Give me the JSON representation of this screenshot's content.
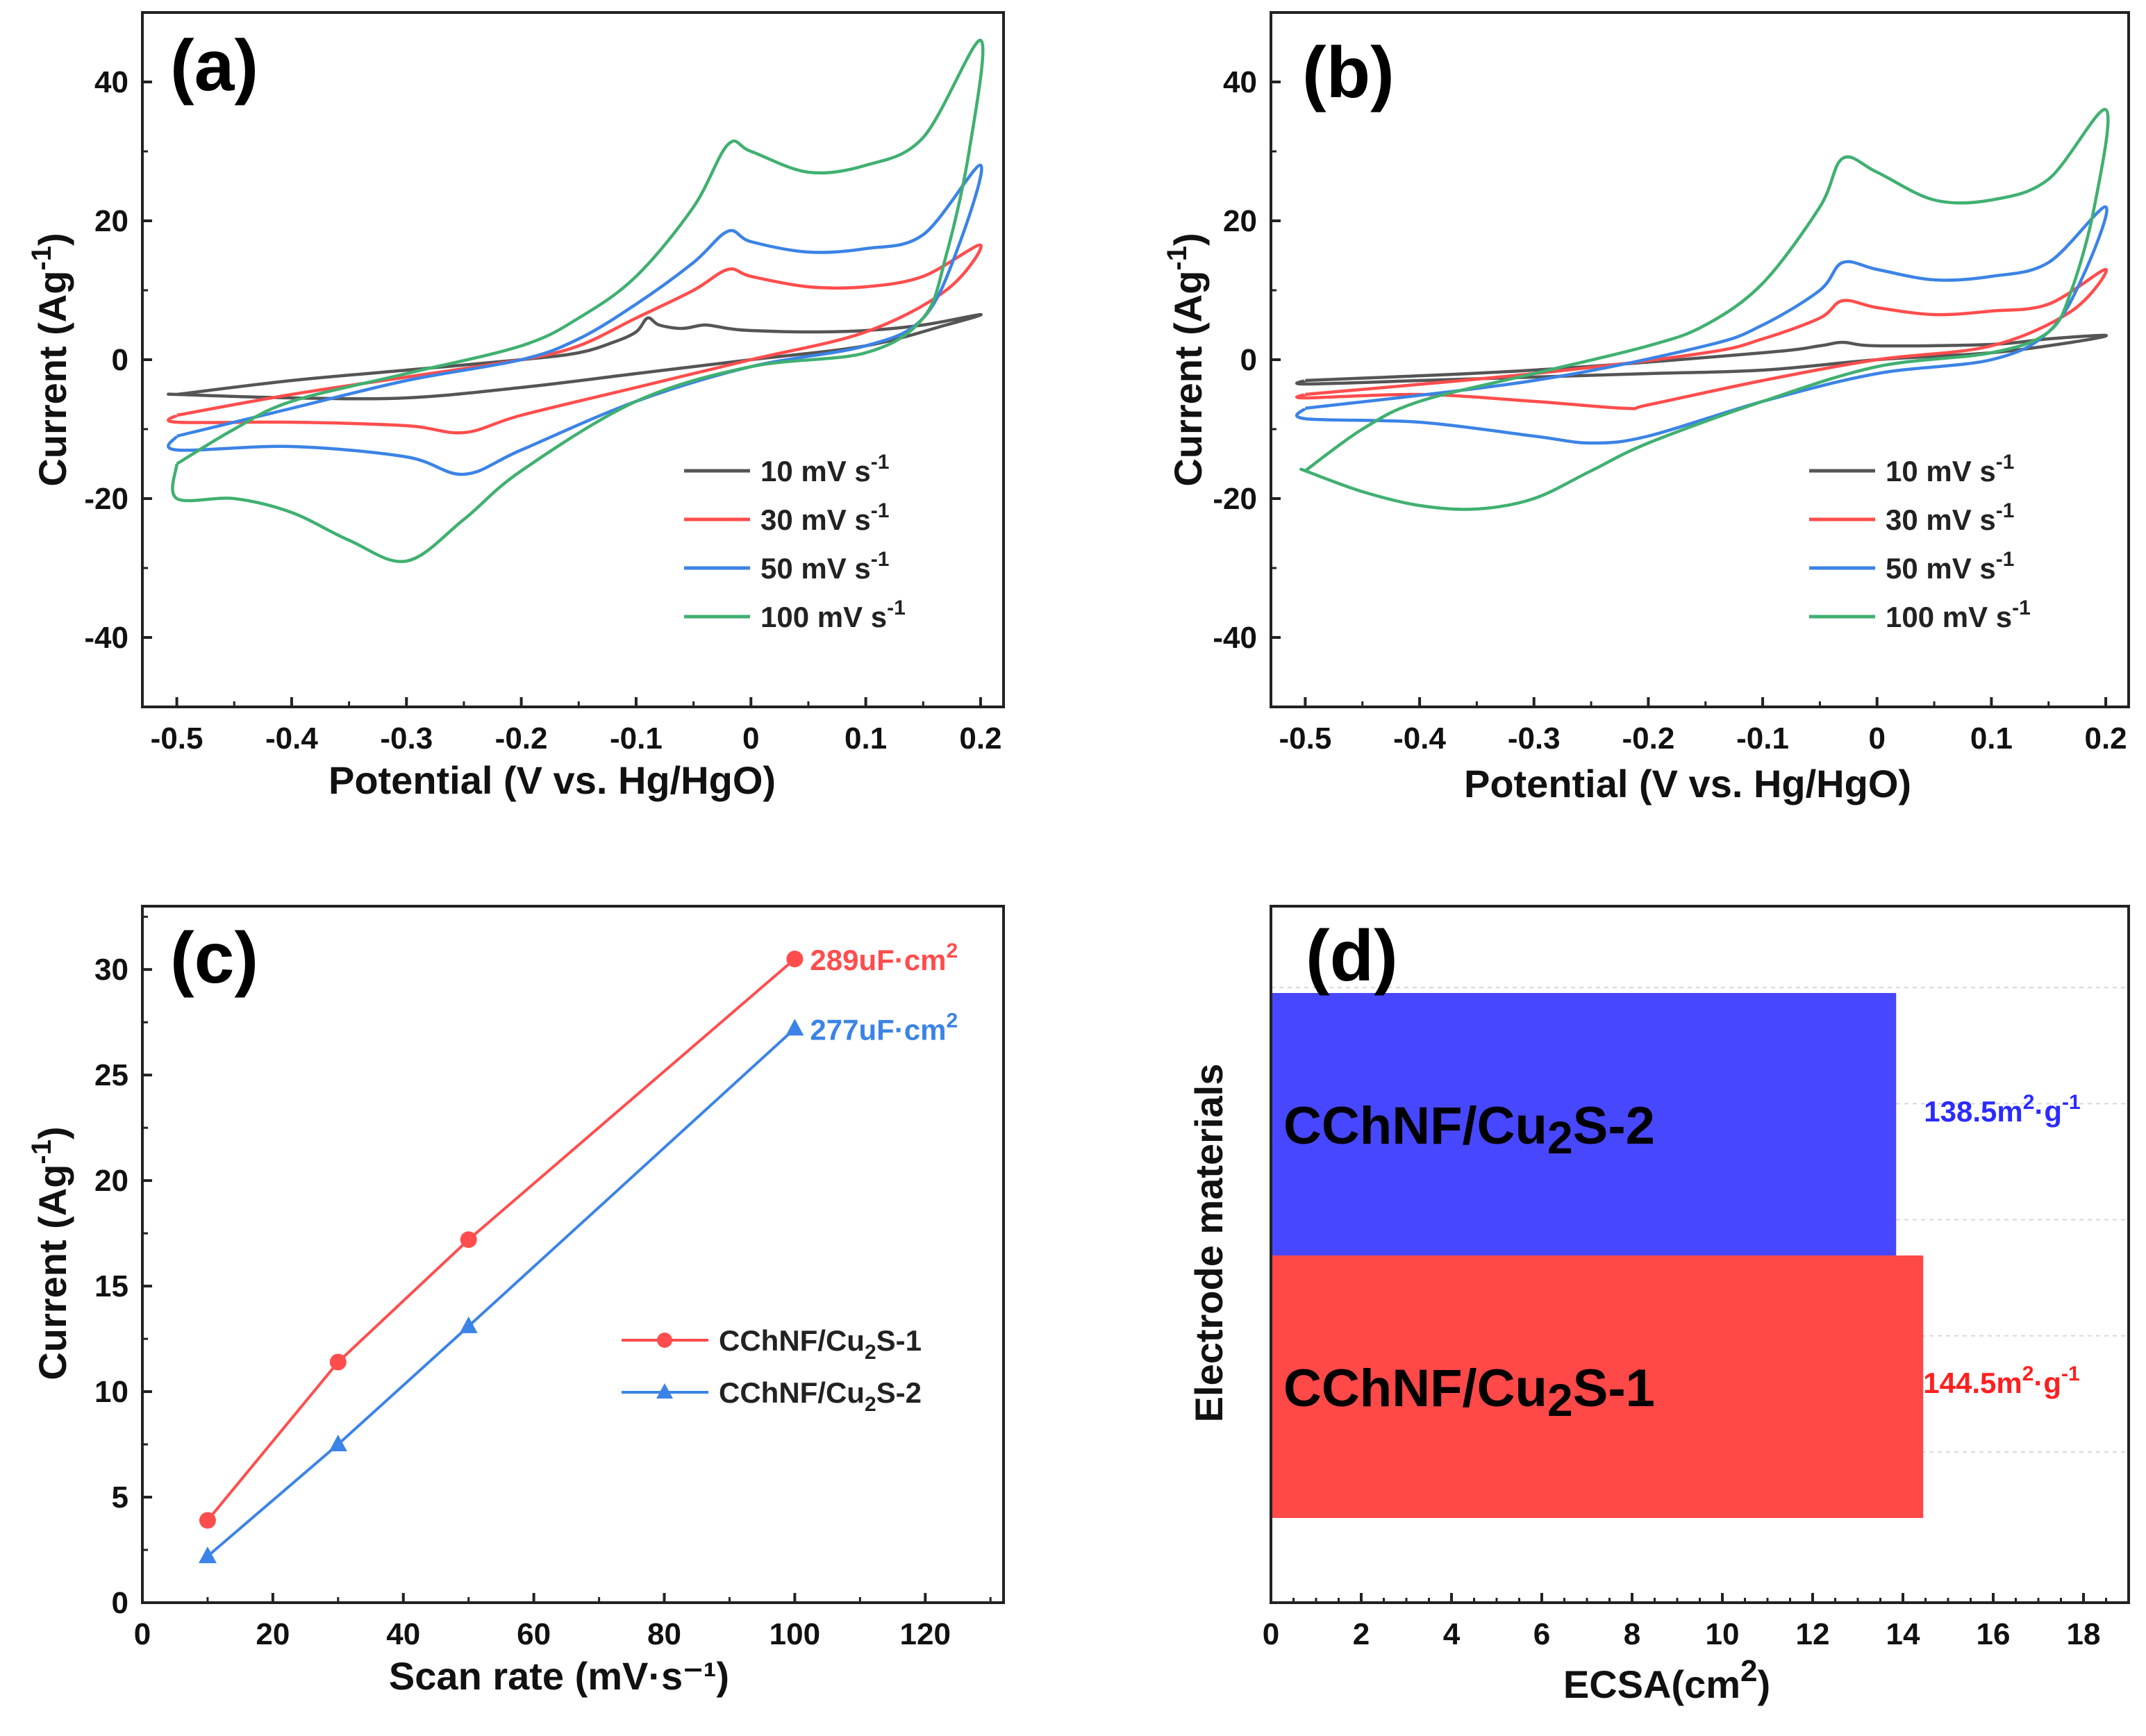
{
  "chart_data": [
    {
      "panel": "(a)",
      "type": "line",
      "xlabel": "Potential (V vs. Hg/HgO)",
      "ylabel": "Current (Ag",
      "ylabel_sup": "-1",
      "ylabel_close": ")",
      "xlim": [
        -0.53,
        0.22
      ],
      "ylim": [
        -50,
        50
      ],
      "xticks": [
        -0.5,
        -0.4,
        -0.3,
        -0.2,
        -0.1,
        0,
        0.1,
        0.2
      ],
      "xtick_labels": [
        "-0.5",
        "-0.4",
        "-0.3",
        "-0.2",
        "-0.1",
        "0",
        "0.1",
        "0.2"
      ],
      "yticks": [
        -40,
        -20,
        0,
        20,
        40
      ],
      "ytick_labels": [
        "-40",
        "-20",
        "0",
        "20",
        "40"
      ],
      "legend_position": "bottom-right",
      "series": [
        {
          "name": "10 mV s",
          "sup": "-1",
          "color": "#555555",
          "x": [
            -0.5,
            -0.4,
            -0.3,
            -0.2,
            -0.15,
            -0.12,
            -0.1,
            -0.09,
            -0.08,
            -0.06,
            -0.04,
            -0.02,
            0,
            0.05,
            0.1,
            0.15,
            0.2,
            0.17,
            0.1,
            0,
            -0.1,
            -0.2,
            -0.3,
            -0.4,
            -0.5
          ],
          "y": [
            -5,
            -3,
            -1.5,
            0,
            1,
            2.5,
            4,
            6,
            5,
            4.5,
            5,
            4.5,
            4.2,
            4,
            4.2,
            5,
            6.5,
            5,
            2,
            0,
            -2,
            -4,
            -5.5,
            -5.5,
            -5
          ]
        },
        {
          "name": "30 mV s",
          "sup": "-1",
          "color": "#ff4d4d",
          "x": [
            -0.5,
            -0.4,
            -0.3,
            -0.2,
            -0.15,
            -0.1,
            -0.05,
            -0.02,
            0,
            0.05,
            0.1,
            0.15,
            0.2,
            0.17,
            0.1,
            0,
            -0.1,
            -0.2,
            -0.25,
            -0.3,
            -0.4,
            -0.5
          ],
          "y": [
            -8,
            -5,
            -2.5,
            0,
            2,
            6,
            10,
            13,
            12,
            10.5,
            10.5,
            12,
            16.5,
            10,
            4,
            0,
            -4,
            -8,
            -10.5,
            -9.5,
            -9,
            -9
          ]
        },
        {
          "name": "50 mV s",
          "sup": "-1",
          "color": "#3b83e6",
          "x": [
            -0.5,
            -0.4,
            -0.3,
            -0.2,
            -0.15,
            -0.1,
            -0.05,
            -0.02,
            0,
            0.05,
            0.1,
            0.15,
            0.2,
            0.18,
            0.15,
            0.1,
            0,
            -0.1,
            -0.2,
            -0.25,
            -0.3,
            -0.4,
            -0.5
          ],
          "y": [
            -11,
            -7,
            -3,
            0,
            3,
            8,
            14,
            18.5,
            17,
            15.5,
            16,
            18,
            28,
            16,
            6,
            2,
            -1,
            -6,
            -13,
            -16.5,
            -14,
            -12.5,
            -13
          ]
        },
        {
          "name": "100 mV s",
          "sup": "-1",
          "color": "#40b070",
          "x": [
            -0.5,
            -0.45,
            -0.4,
            -0.3,
            -0.2,
            -0.15,
            -0.1,
            -0.05,
            -0.02,
            0,
            0.05,
            0.1,
            0.15,
            0.2,
            0.19,
            0.17,
            0.15,
            0.1,
            0,
            -0.1,
            -0.2,
            -0.25,
            -0.3,
            -0.35,
            -0.4,
            -0.45,
            -0.5
          ],
          "y": [
            -15,
            -10,
            -6,
            -2,
            2,
            6,
            12,
            22,
            31,
            30,
            27,
            28,
            32,
            46,
            30,
            15,
            6,
            1,
            -1,
            -6,
            -16,
            -23,
            -29,
            -26,
            -22,
            -20,
            -20
          ]
        }
      ]
    },
    {
      "panel": "(b)",
      "type": "line",
      "xlabel": "Potential (V vs. Hg/HgO)",
      "ylabel": "Current (Ag",
      "ylabel_sup": "-1",
      "ylabel_close": ")",
      "xlim": [
        -0.53,
        0.22
      ],
      "ylim": [
        -50,
        50
      ],
      "xticks": [
        -0.5,
        -0.4,
        -0.3,
        -0.2,
        -0.1,
        0,
        0.1,
        0.2
      ],
      "xtick_labels": [
        "-0.5",
        "-0.4",
        "-0.3",
        "-0.2",
        "-0.1",
        "0",
        "0.1",
        "0.2"
      ],
      "yticks": [
        -40,
        -20,
        0,
        20,
        40
      ],
      "ytick_labels": [
        "-40",
        "-20",
        "0",
        "20",
        "40"
      ],
      "legend_position": "bottom-right",
      "series": [
        {
          "name": "10 mV s",
          "sup": "-1",
          "color": "#555555",
          "x": [
            -0.5,
            -0.3,
            -0.1,
            -0.05,
            -0.03,
            0,
            0.1,
            0.15,
            0.2,
            0.17,
            0.1,
            0,
            -0.1,
            -0.2,
            -0.3,
            -0.4,
            -0.5
          ],
          "y": [
            -3,
            -1.5,
            1,
            2,
            2.5,
            2,
            2.2,
            3,
            3.5,
            2.5,
            1,
            0,
            -1.5,
            -2,
            -2.5,
            -3,
            -3.5
          ]
        },
        {
          "name": "30 mV s",
          "sup": "-1",
          "color": "#ff4d4d",
          "x": [
            -0.5,
            -0.3,
            -0.15,
            -0.1,
            -0.05,
            -0.03,
            0,
            0.05,
            0.1,
            0.15,
            0.2,
            0.17,
            0.1,
            0,
            -0.1,
            -0.2,
            -0.22,
            -0.3,
            -0.4,
            -0.5
          ],
          "y": [
            -5,
            -2,
            1,
            3,
            6,
            8.5,
            7.5,
            6.5,
            7,
            8,
            13,
            7,
            2,
            0,
            -3,
            -6.5,
            -7,
            -6,
            -5,
            -5.5
          ]
        },
        {
          "name": "50 mV s",
          "sup": "-1",
          "color": "#3b83e6",
          "x": [
            -0.5,
            -0.3,
            -0.15,
            -0.1,
            -0.05,
            -0.03,
            0,
            0.05,
            0.1,
            0.15,
            0.2,
            0.18,
            0.15,
            0.1,
            0,
            -0.1,
            -0.2,
            -0.25,
            -0.3,
            -0.4,
            -0.5
          ],
          "y": [
            -7,
            -3,
            2,
            5,
            10,
            14,
            13,
            11.5,
            12,
            14,
            22,
            12,
            4,
            0,
            -2,
            -6,
            -11,
            -12,
            -11,
            -9,
            -8.5
          ]
        },
        {
          "name": "100 mV s",
          "sup": "-1",
          "color": "#40b070",
          "x": [
            -0.5,
            -0.45,
            -0.4,
            -0.3,
            -0.2,
            -0.15,
            -0.1,
            -0.05,
            -0.03,
            0,
            0.05,
            0.1,
            0.15,
            0.2,
            0.19,
            0.17,
            0.15,
            0.1,
            0,
            -0.1,
            -0.2,
            -0.25,
            -0.3,
            -0.35,
            -0.4,
            -0.45,
            -0.5
          ],
          "y": [
            -16,
            -10,
            -6,
            -2,
            2,
            5,
            11,
            22,
            29,
            27,
            23,
            23,
            26,
            36,
            22,
            10,
            4,
            1,
            -1,
            -6,
            -12,
            -16,
            -20,
            -21.5,
            -21,
            -19,
            -16
          ]
        }
      ]
    },
    {
      "panel": "(c)",
      "type": "scatter",
      "xlabel": "Scan rate (mV·s⁻¹)",
      "ylabel": "Current (Ag",
      "ylabel_sup": "-1",
      "ylabel_close": ")",
      "xlim": [
        0,
        132
      ],
      "ylim": [
        0,
        33
      ],
      "xticks": [
        0,
        20,
        40,
        60,
        80,
        100,
        120
      ],
      "xtick_labels": [
        "0",
        "20",
        "40",
        "60",
        "80",
        "100",
        "120"
      ],
      "yticks": [
        0,
        5,
        10,
        15,
        20,
        25,
        30
      ],
      "ytick_labels": [
        "0",
        "5",
        "10",
        "15",
        "20",
        "25",
        "30"
      ],
      "legend_position": "bottom-right",
      "series": [
        {
          "name_a": "CChNF/Cu",
          "name_sub": "2",
          "name_b": "S-1",
          "color": "#ff4d4d",
          "marker": "circle",
          "x": [
            10,
            30,
            50,
            100
          ],
          "y": [
            3.9,
            11.4,
            17.2,
            30.5
          ],
          "annotation": "289uF·cm",
          "annotation_sup": "2"
        },
        {
          "name_a": "CChNF/Cu",
          "name_sub": "2",
          "name_b": "S-2",
          "color": "#3b83e6",
          "marker": "triangle",
          "x": [
            10,
            30,
            50,
            100
          ],
          "y": [
            2.2,
            7.5,
            13.1,
            27.2
          ],
          "annotation": "277uF·cm",
          "annotation_sup": "2"
        }
      ]
    },
    {
      "panel": "(d)",
      "type": "bar",
      "orientation": "horizontal",
      "xlabel": "ECSA(cm",
      "xlabel_sup": "2",
      "xlabel_close": ")",
      "ylabel": "Electrode materials",
      "xlim": [
        0,
        19
      ],
      "xticks": [
        0,
        2,
        4,
        6,
        8,
        10,
        12,
        14,
        16,
        18
      ],
      "xtick_labels": [
        "0",
        "2",
        "4",
        "6",
        "8",
        "10",
        "12",
        "14",
        "16",
        "18"
      ],
      "bars": [
        {
          "label_a": "CChNF/Cu",
          "label_sub": "2",
          "label_b": "S-2",
          "value": 13.85,
          "color": "#4747ff",
          "annotation": "138.5m",
          "annotation_sup1": "2",
          "annotation_mid": "·g",
          "annotation_sup2": "-1",
          "annotation_color": "#2b2bff"
        },
        {
          "label_a": "CChNF/Cu",
          "label_sub": "2",
          "label_b": "S-1",
          "value": 14.45,
          "color": "#ff4848",
          "annotation": "144.5m",
          "annotation_sup1": "2",
          "annotation_mid": "·g",
          "annotation_sup2": "-1",
          "annotation_color": "#ff1f1f"
        }
      ]
    }
  ]
}
